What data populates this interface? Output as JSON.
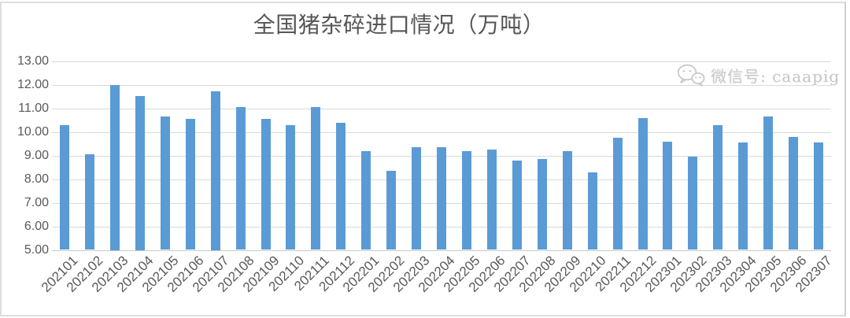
{
  "page": {
    "title": "全国猪杂碎进口情况（万吨）"
  },
  "watermark": {
    "icon": "wechat-icon",
    "text": "微信号: caaapig"
  },
  "colors": {
    "bar": "#5B9BD5",
    "gridline": "#D9D9D9",
    "axis_line": "#C9C9C9",
    "axis_text": "#595959",
    "title_text": "#565656",
    "watermark_text": "#C7C7C7"
  },
  "chart_data": {
    "type": "bar",
    "title": "全国猪杂碎进口情况（万吨）",
    "xlabel": "",
    "ylabel": "",
    "grid": true,
    "legend_position": "none",
    "ylim": [
      5,
      13
    ],
    "yticks": [
      "13.00",
      "12.00",
      "11.00",
      "10.00",
      "9.00",
      "8.00",
      "7.00",
      "6.00",
      "5.00"
    ],
    "categories": [
      "202101",
      "202102",
      "202103",
      "202104",
      "202105",
      "202106",
      "202107",
      "202108",
      "202109",
      "202110",
      "202111",
      "202112",
      "202201",
      "202202",
      "202203",
      "202204",
      "202205",
      "202206",
      "202207",
      "202208",
      "202209",
      "202210",
      "202211",
      "202212",
      "202301",
      "202302",
      "202303",
      "202304",
      "202305",
      "202306",
      "202307"
    ],
    "values": [
      10.3,
      9.05,
      12.0,
      11.55,
      10.65,
      10.55,
      11.75,
      11.08,
      10.55,
      10.3,
      11.08,
      10.4,
      9.2,
      8.35,
      9.35,
      9.35,
      9.2,
      9.25,
      8.8,
      8.85,
      9.2,
      8.3,
      9.75,
      10.6,
      9.6,
      8.95,
      10.3,
      9.55,
      10.65,
      9.8,
      9.55
    ]
  }
}
